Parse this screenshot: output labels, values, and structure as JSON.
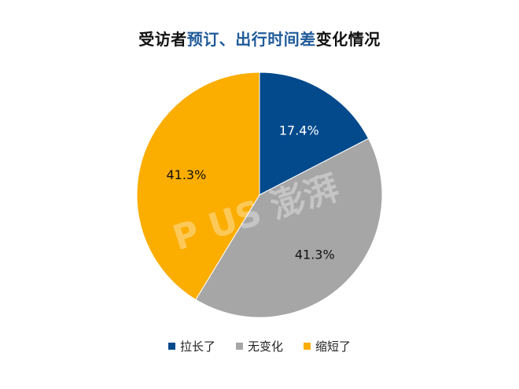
{
  "title": {
    "part1": "受访者",
    "highlight": "预订、出行时间差",
    "part2": "变化情况"
  },
  "watermark": "P  US 澎湃",
  "colors": {
    "series": [
      "#034a8c",
      "#a6a6a6",
      "#fbad00"
    ],
    "title_highlight": "#1f5a99"
  },
  "chart_data": {
    "type": "pie",
    "labels": [
      "拉长了",
      "无变化",
      "缩短了"
    ],
    "values": [
      17.4,
      41.3,
      41.3
    ],
    "value_labels": [
      "17.4%",
      "41.3%",
      "41.3%"
    ],
    "start_angle": "12 o'clock",
    "direction": "clockwise",
    "legend_position": "bottom"
  }
}
